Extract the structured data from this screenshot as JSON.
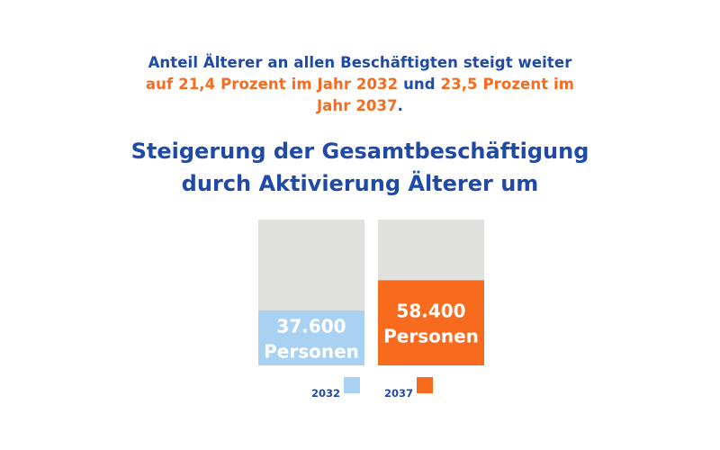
{
  "intro": {
    "line1": "Anteil Älterer an allen Beschäftigten steigt weiter",
    "line2_highlight": "auf 21,4 Prozent im Jahr 2032",
    "line2_joiner": " und ",
    "line2_highlight2": "23,5 Prozent im",
    "line3_highlight": "Jahr 2037",
    "line3_end": "."
  },
  "title": {
    "line1": "Steigerung der Gesamtbeschäftigung",
    "line2": "durch Aktivierung Älterer um"
  },
  "colors": {
    "blue_text": "#1f4aa8",
    "orange": "#f86b1e",
    "light_blue": "#a9d2f2",
    "gray": "#e0e0de"
  },
  "chart_data": {
    "type": "bar",
    "categories": [
      "2032",
      "2037"
    ],
    "series": [
      {
        "values": [
          37600,
          58400
        ],
        "colors": [
          "#a9d2f2",
          "#f86b1e"
        ]
      }
    ],
    "labels": [
      {
        "value": "37.600",
        "unit": "Personen"
      },
      {
        "value": "58.400",
        "unit": "Personen"
      }
    ],
    "legend": [
      {
        "label": "2032",
        "color": "#a9d2f2"
      },
      {
        "label": "2037",
        "color": "#f86b1e"
      }
    ],
    "ylim": [
      0,
      100000
    ],
    "background_bar_color": "#e0e0de",
    "grid": false,
    "legend_placement": "bottom"
  }
}
